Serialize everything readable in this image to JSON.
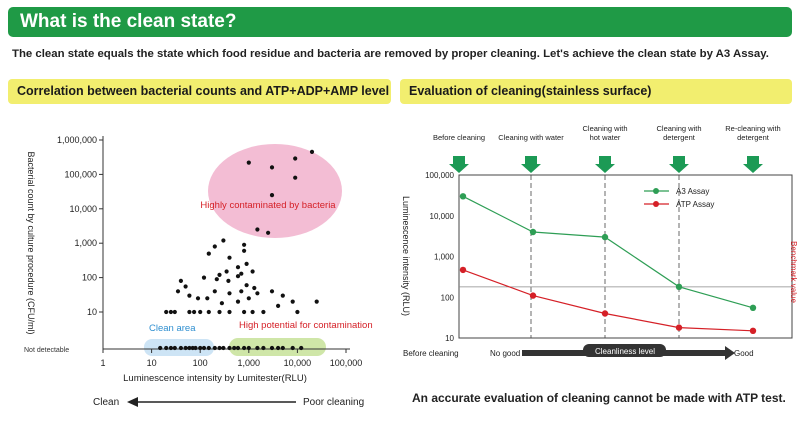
{
  "header": {
    "title": "What is the clean state?"
  },
  "intro": "The clean state equals the state which food residue and bacteria are removed by proper cleaning. Let's achieve the clean state by A3 Assay.",
  "sections": {
    "left": "Correlation between bacterial counts and ATP+ADP+AMP level",
    "right": "Evaluation of cleaning(stainless surface)"
  },
  "bottom_note": "An accurate evaluation of cleaning cannot be made with ATP test.",
  "colors": {
    "header": "#1f9a46",
    "section": "#f2ee6f",
    "a3": "#2e9e55",
    "atp": "#d52027",
    "arrow": "#1c9a55",
    "pink": "#f2b6cf"
  },
  "chart_data": [
    {
      "type": "scatter",
      "xlabel": "Luminescence intensity by Lumitester(RLU)",
      "ylabel": "Bacterial count by culture procedure (CFU/ml)",
      "x_scale": "log",
      "y_scale": "log",
      "xlim": [
        1,
        100000
      ],
      "ylim": [
        1,
        1000000
      ],
      "x_ticks": [
        "1",
        "10",
        "100",
        "1,000",
        "10,000",
        "100,000"
      ],
      "y_ticks": [
        "1,000,000",
        "100,000",
        "10,000",
        "1,000",
        "100",
        "10"
      ],
      "y_nd_label": "Not detectable",
      "annotations": {
        "high": "Highly contaminated by bacteria",
        "clean": "Clean area",
        "potential": "High potential for contamination"
      },
      "bottom_scale": {
        "left": "Clean",
        "right": "Poor cleaning"
      },
      "points": [
        [
          1000,
          220000
        ],
        [
          3000,
          160000
        ],
        [
          9000,
          290000
        ],
        [
          9000,
          80000
        ],
        [
          20000,
          450000
        ],
        [
          3000,
          25000
        ],
        [
          1500,
          2500
        ],
        [
          2500,
          2000
        ],
        [
          300,
          1200
        ],
        [
          200,
          800
        ],
        [
          800,
          900
        ],
        [
          800,
          600
        ],
        [
          900,
          250
        ],
        [
          600,
          200
        ],
        [
          150,
          500
        ],
        [
          400,
          380
        ],
        [
          350,
          150
        ],
        [
          700,
          130
        ],
        [
          1200,
          150
        ],
        [
          250,
          120
        ],
        [
          600,
          110
        ],
        [
          120,
          100
        ],
        [
          220,
          90
        ],
        [
          380,
          80
        ],
        [
          900,
          60
        ],
        [
          1300,
          50
        ],
        [
          40,
          80
        ],
        [
          50,
          55
        ],
        [
          35,
          40
        ],
        [
          60,
          30
        ],
        [
          90,
          25
        ],
        [
          200,
          40
        ],
        [
          400,
          35
        ],
        [
          700,
          40
        ],
        [
          1500,
          35
        ],
        [
          3000,
          40
        ],
        [
          5000,
          30
        ],
        [
          8000,
          20
        ],
        [
          1000,
          25
        ],
        [
          600,
          20
        ],
        [
          280,
          18
        ],
        [
          140,
          25
        ],
        [
          25000,
          20
        ],
        [
          4000,
          15
        ],
        [
          20,
          10
        ],
        [
          25,
          10
        ],
        [
          30,
          10
        ],
        [
          60,
          10
        ],
        [
          75,
          10
        ],
        [
          100,
          10
        ],
        [
          150,
          10
        ],
        [
          250,
          10
        ],
        [
          400,
          10
        ],
        [
          800,
          10
        ],
        [
          1200,
          10
        ],
        [
          2000,
          10
        ],
        [
          10000,
          10
        ]
      ],
      "nd_points": [
        15,
        20,
        25,
        30,
        40,
        50,
        60,
        70,
        80,
        100,
        120,
        150,
        200,
        250,
        300,
        400,
        500,
        600,
        800,
        1000,
        1500,
        2000,
        3000,
        4000,
        5000,
        8000,
        12000
      ]
    },
    {
      "type": "line",
      "ylabel": "Luminescence intensity (RLU)",
      "y_scale": "log",
      "ylim": [
        10,
        100000
      ],
      "y_ticks": [
        "100,000",
        "10,000",
        "1,000",
        "100",
        "10"
      ],
      "categories": [
        "Before cleaning",
        "Cleaning with water",
        "Cleaning with hot water",
        "Cleaning with detergent",
        "Re-cleaning with detergent"
      ],
      "series": [
        {
          "name": "A3 Assay",
          "values": [
            30000,
            4000,
            3000,
            180,
            55
          ]
        },
        {
          "name": "ATP Assay",
          "values": [
            470,
            110,
            40,
            18,
            15
          ]
        }
      ],
      "benchmark": {
        "label": "Benchmark value",
        "value": 180
      },
      "x_axis": {
        "left": "Before cleaning",
        "no_good": "No good",
        "middle": "Cleanliness level",
        "right": "Good"
      }
    }
  ]
}
